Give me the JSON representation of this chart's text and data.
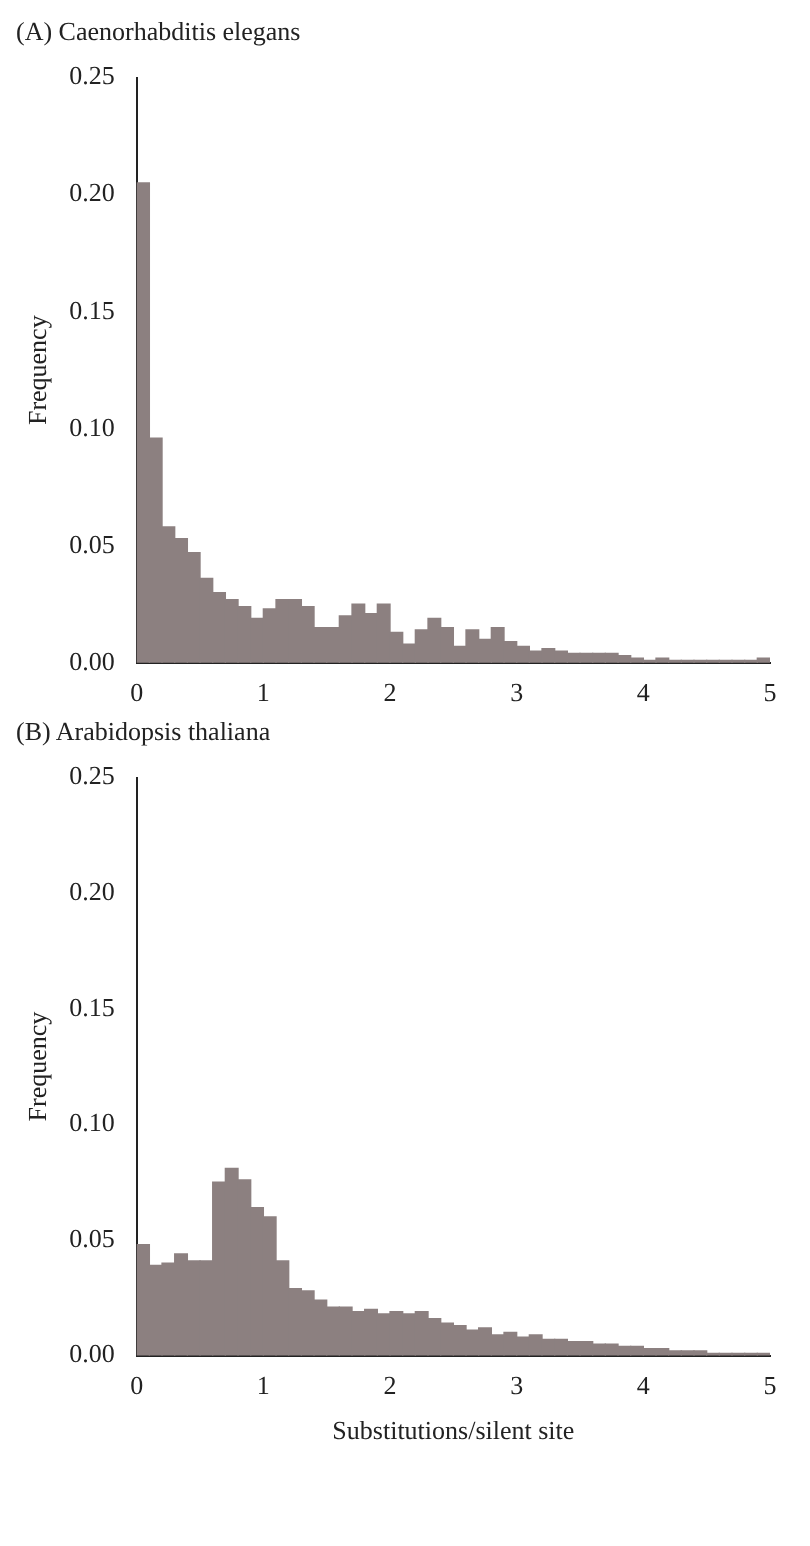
{
  "chart_data": [
    {
      "type": "histogram",
      "title": "(A) Caenorhabditis elegans",
      "ylabel": "Frequency",
      "color": "#8c8080",
      "bins": [
        0,
        0.1,
        0.2,
        0.3,
        0.4,
        0.5,
        0.6,
        0.7,
        0.8,
        0.9,
        1,
        1.1,
        1.2,
        1.3,
        1.4,
        1.5,
        1.6,
        1.7,
        1.8,
        1.9,
        2,
        2.1,
        2.2,
        2.3,
        2.4,
        2.5,
        2.6,
        2.7,
        2.8,
        2.9,
        3,
        3.1,
        3.2,
        3.3,
        3.4,
        3.5,
        3.6,
        3.7,
        3.8,
        3.9,
        4,
        4.1,
        4.2,
        4.3,
        4.4,
        4.5,
        4.6,
        4.7,
        4.8,
        4.9,
        5
      ],
      "values": [
        0.205,
        0.096,
        0.058,
        0.053,
        0.047,
        0.036,
        0.03,
        0.027,
        0.024,
        0.019,
        0.023,
        0.027,
        0.027,
        0.024,
        0.015,
        0.015,
        0.02,
        0.025,
        0.021,
        0.025,
        0.013,
        0.008,
        0.014,
        0.019,
        0.015,
        0.007,
        0.014,
        0.01,
        0.015,
        0.009,
        0.007,
        0.005,
        0.006,
        0.005,
        0.004,
        0.004,
        0.004,
        0.004,
        0.003,
        0.002,
        0.001,
        0.002,
        0.001,
        0.001,
        0.001,
        0.001,
        0.001,
        0.001,
        0.001,
        0.002
      ],
      "xlim": [
        0,
        5
      ],
      "xticks": [
        0,
        1,
        2,
        3,
        4,
        5
      ],
      "ylim": [
        0,
        0.25
      ],
      "yticks": [
        {
          "value": 0,
          "label": "0.00"
        },
        {
          "value": 0.05,
          "label": "0.05"
        },
        {
          "value": 0.1,
          "label": "0.10"
        },
        {
          "value": 0.15,
          "label": "0.15"
        },
        {
          "value": 0.2,
          "label": "0.20"
        },
        {
          "value": 0.25,
          "label": "0.25"
        }
      ],
      "grid": false,
      "legend": false
    },
    {
      "type": "histogram",
      "title": "(B) Arabidopsis thaliana",
      "ylabel": "Frequency",
      "xlabel": "Substitutions/silent site",
      "color": "#8c8080",
      "bins": [
        0,
        0.1,
        0.2,
        0.3,
        0.4,
        0.5,
        0.6,
        0.7,
        0.8,
        0.9,
        1,
        1.1,
        1.2,
        1.3,
        1.4,
        1.5,
        1.6,
        1.7,
        1.8,
        1.9,
        2,
        2.1,
        2.2,
        2.3,
        2.4,
        2.5,
        2.6,
        2.7,
        2.8,
        2.9,
        3,
        3.1,
        3.2,
        3.3,
        3.4,
        3.5,
        3.6,
        3.7,
        3.8,
        3.9,
        4,
        4.1,
        4.2,
        4.3,
        4.4,
        4.5,
        4.6,
        4.7,
        4.8,
        4.9,
        5
      ],
      "values": [
        0.048,
        0.039,
        0.04,
        0.044,
        0.041,
        0.041,
        0.075,
        0.081,
        0.076,
        0.064,
        0.06,
        0.041,
        0.029,
        0.028,
        0.024,
        0.021,
        0.021,
        0.019,
        0.02,
        0.018,
        0.019,
        0.018,
        0.019,
        0.016,
        0.014,
        0.013,
        0.011,
        0.012,
        0.009,
        0.01,
        0.008,
        0.009,
        0.007,
        0.007,
        0.006,
        0.006,
        0.005,
        0.005,
        0.004,
        0.004,
        0.003,
        0.003,
        0.002,
        0.002,
        0.002,
        0.001,
        0.001,
        0.001,
        0.001,
        0.001
      ],
      "xlim": [
        0,
        5
      ],
      "xticks": [
        0,
        1,
        2,
        3,
        4,
        5
      ],
      "ylim": [
        0,
        0.25
      ],
      "yticks": [
        {
          "value": 0,
          "label": "0.00"
        },
        {
          "value": 0.05,
          "label": "0.05"
        },
        {
          "value": 0.1,
          "label": "0.10"
        },
        {
          "value": 0.15,
          "label": "0.15"
        },
        {
          "value": 0.2,
          "label": "0.20"
        },
        {
          "value": 0.25,
          "label": "0.25"
        }
      ],
      "grid": false,
      "legend": false
    }
  ]
}
